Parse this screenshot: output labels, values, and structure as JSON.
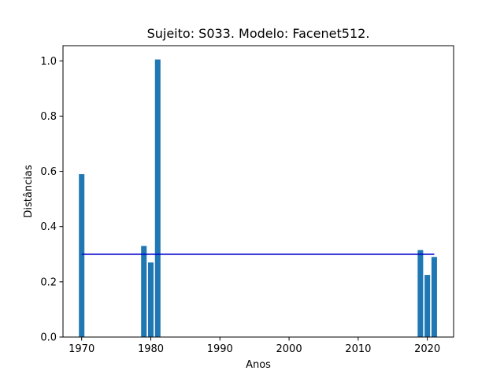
{
  "chart_data": {
    "type": "bar",
    "title": "Sujeito: S033. Modelo: Facenet512.",
    "xlabel": "Anos",
    "ylabel": "Distâncias",
    "xlim": [
      1967.3,
      2023.8
    ],
    "ylim": [
      0,
      1.055
    ],
    "x_ticks": [
      1970,
      1980,
      1990,
      2000,
      2010,
      2020
    ],
    "y_ticks": [
      0.0,
      0.2,
      0.4,
      0.6,
      0.8,
      1.0
    ],
    "y_tick_labels": [
      "0.0",
      "0.2",
      "0.4",
      "0.6",
      "0.8",
      "1.0"
    ],
    "bar_color": "#1f77b4",
    "bar_width_years": 0.8,
    "bars": [
      {
        "x": 1970,
        "value": 0.59
      },
      {
        "x": 1979,
        "value": 0.33
      },
      {
        "x": 1980,
        "value": 0.27
      },
      {
        "x": 1981,
        "value": 1.005
      },
      {
        "x": 2019,
        "value": 0.315
      },
      {
        "x": 2020,
        "value": 0.225
      },
      {
        "x": 2021,
        "value": 0.29
      }
    ],
    "reference_line": {
      "value": 0.3,
      "x_start": 1970,
      "x_end": 2021,
      "color": "#0000cc"
    },
    "grid": false,
    "legend": "none"
  }
}
